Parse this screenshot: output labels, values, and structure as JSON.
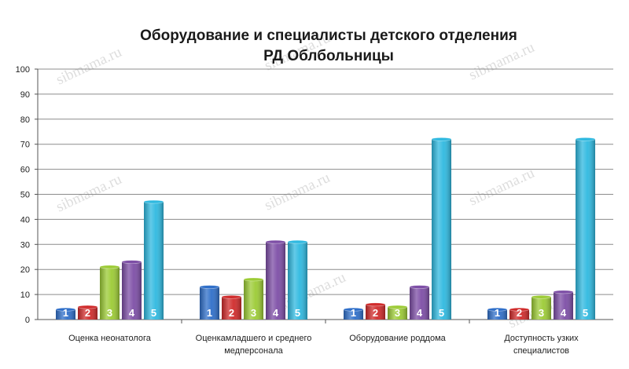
{
  "chart_data": {
    "type": "bar",
    "title": [
      "Оборудование и специалисты детского отделения",
      "РД Облбольницы"
    ],
    "categories": [
      [
        "Оценка неонатолога"
      ],
      [
        "Оценкамладшего и среднего",
        "медперсонала"
      ],
      [
        "Оборудование роддома"
      ],
      [
        "Доступность узких",
        "специалистов"
      ]
    ],
    "series": [
      {
        "name": "1",
        "color": "#2f6fc9",
        "values": [
          4,
          13,
          4,
          4
        ]
      },
      {
        "name": "2",
        "color": "#d02b2b",
        "values": [
          5,
          9,
          6,
          4
        ]
      },
      {
        "name": "3",
        "color": "#9ccb35",
        "values": [
          21,
          16,
          5,
          9
        ]
      },
      {
        "name": "4",
        "color": "#7d4ea6",
        "values": [
          23,
          31,
          13,
          11
        ]
      },
      {
        "name": "5",
        "color": "#2fb9e0",
        "values": [
          47,
          31,
          72,
          72
        ]
      }
    ],
    "ylim": [
      0,
      100
    ],
    "yticks": [
      0,
      10,
      20,
      30,
      40,
      50,
      60,
      70,
      80,
      90,
      100
    ],
    "grid": true,
    "legend": "none"
  },
  "watermark": "sibmama.ru"
}
